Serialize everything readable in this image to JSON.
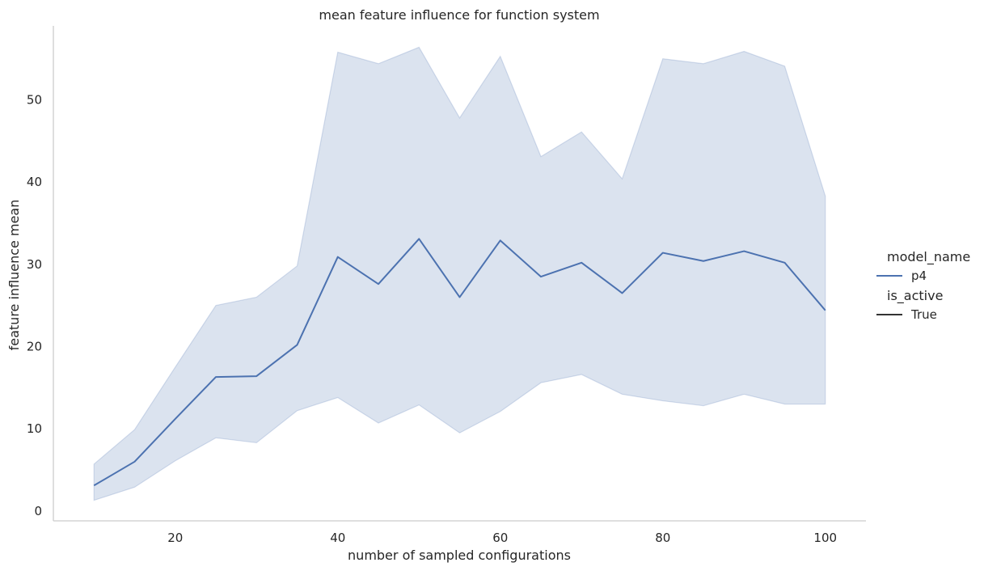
{
  "chart_data": {
    "type": "line",
    "title": "mean feature influence for function system",
    "xlabel": "number of sampled configurations",
    "ylabel": "feature influence mean",
    "xlim": [
      5,
      105
    ],
    "ylim": [
      -1.2,
      59
    ],
    "xticks": [
      20,
      40,
      60,
      80,
      100
    ],
    "yticks": [
      0,
      10,
      20,
      30,
      40,
      50
    ],
    "grid": false,
    "legend_position": "right",
    "legend": {
      "hue_title": "model_name",
      "hue_entries": [
        {
          "label": "p4",
          "color": "#4c72b0"
        }
      ],
      "style_title": "is_active",
      "style_entries": [
        {
          "label": "True",
          "color": "#333333"
        }
      ]
    },
    "series": [
      {
        "name": "p4",
        "color": "#4c72b0",
        "x": [
          10,
          15,
          20,
          25,
          30,
          35,
          40,
          45,
          50,
          55,
          60,
          65,
          70,
          75,
          80,
          85,
          90,
          95,
          100
        ],
        "y": [
          3.1,
          6.0,
          11.2,
          16.3,
          16.4,
          20.2,
          30.9,
          27.6,
          33.1,
          26.0,
          32.9,
          28.5,
          30.2,
          26.5,
          31.4,
          30.4,
          31.6,
          30.2,
          24.4
        ],
        "ci_lower": [
          1.3,
          2.9,
          6.1,
          8.9,
          8.3,
          12.2,
          13.8,
          10.7,
          12.9,
          9.5,
          12.1,
          15.6,
          16.6,
          14.2,
          13.4,
          12.8,
          14.2,
          13.0,
          13.0
        ],
        "ci_upper": [
          5.7,
          9.9,
          17.5,
          25.0,
          26.0,
          29.8,
          55.8,
          54.4,
          56.4,
          47.8,
          55.3,
          43.1,
          46.1,
          40.4,
          55.0,
          54.4,
          55.9,
          54.1,
          38.3
        ]
      }
    ]
  }
}
